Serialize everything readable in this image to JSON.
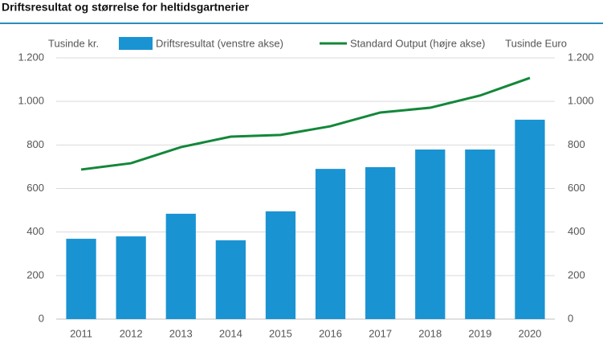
{
  "chart_data": {
    "type": "bar-line",
    "title": "Driftsresultat og størrelse for heltidsgartnerier",
    "y_label": "Tusinde kr.",
    "y2_label": "Tusinde Euro",
    "categories": [
      "2011",
      "2012",
      "2013",
      "2014",
      "2015",
      "2016",
      "2017",
      "2018",
      "2019",
      "2020"
    ],
    "series": [
      {
        "name": "Driftsresultat (venstre akse)",
        "type": "bar",
        "color": "#1a93d3",
        "values": [
          369,
          380,
          484,
          362,
          495,
          690,
          698,
          779,
          779,
          916
        ]
      },
      {
        "name": "Standard Output (højre akse)",
        "type": "line",
        "color": "#13873a",
        "axis": "y2",
        "values": [
          687,
          716,
          790,
          838,
          846,
          886,
          949,
          971,
          1027,
          1108
        ]
      }
    ],
    "ylim": [
      0,
      1200
    ],
    "yticks": [
      0,
      200,
      400,
      600,
      800,
      {
        "value": 1000,
        "label": "1.000"
      },
      {
        "value": 1200,
        "label": "1.200"
      }
    ],
    "y2lim": [
      0,
      1200
    ],
    "y2ticks": [
      0,
      200,
      400,
      600,
      800,
      {
        "value": 1000,
        "label": "1.000"
      },
      {
        "value": 1200,
        "label": "1.200"
      }
    ],
    "grid": true
  }
}
